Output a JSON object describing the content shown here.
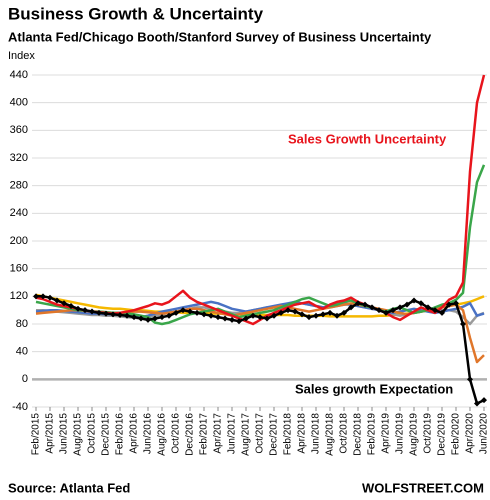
{
  "chart_data": {
    "type": "line",
    "title": "Business Growth & Uncertainty",
    "subtitle": "Atlanta Fed/Chicago Booth/Stanford Survey of Business Uncertainty",
    "y_label": "Index",
    "source": "Source: Atlanta Fed",
    "credit": "WOLFSTREET.COM",
    "annotations": [
      {
        "text": "Sales Growth Uncertainty",
        "color": "#e8141c"
      },
      {
        "text": "Sales growth Expectation",
        "color": "#000000"
      }
    ],
    "categories": [
      "Feb/2015",
      null,
      "Apr/2015",
      null,
      "Jun/2015",
      null,
      "Aug/2015",
      null,
      "Oct/2015",
      null,
      "Dec/2015",
      null,
      "Feb/2016",
      null,
      "Apr/2016",
      null,
      "Jun/2016",
      null,
      "Aug/2016",
      null,
      "Oct/2016",
      null,
      "Dec/2016",
      null,
      "Feb/2017",
      null,
      "Apr/2017",
      null,
      "Jun/2017",
      null,
      "Aug/2017",
      null,
      "Oct/2017",
      null,
      "Dec/2017",
      null,
      "Feb/2018",
      null,
      "Apr/2018",
      null,
      "Jun/2018",
      null,
      "Aug/2018",
      null,
      "Oct/2018",
      null,
      "Dec/2018",
      null,
      "Feb/2019",
      null,
      "Apr/2019",
      null,
      "Jun/2019",
      null,
      "Aug/2019",
      null,
      "Oct/2019",
      null,
      "Dec/2019",
      null,
      "Feb/2020",
      null,
      "Apr/2020",
      null,
      "Jun/2020"
    ],
    "ylim": [
      -40,
      440
    ],
    "yticks": [
      -40,
      0,
      40,
      80,
      120,
      160,
      200,
      240,
      280,
      320,
      360,
      400,
      440
    ],
    "grid": true,
    "series": [
      {
        "color": "#f5b800",
        "values": [
          122,
          120,
          118,
          116,
          114,
          112,
          110,
          108,
          106,
          104,
          103,
          102,
          102,
          101,
          100,
          100,
          99,
          98,
          98,
          97,
          97,
          96,
          96,
          96,
          96,
          95,
          95,
          95,
          94,
          94,
          94,
          94,
          93,
          93,
          93,
          93,
          93,
          92,
          92,
          92,
          92,
          92,
          91,
          91,
          91,
          91,
          91,
          91,
          91,
          92,
          92,
          93,
          94,
          95,
          96,
          98,
          100,
          102,
          104,
          106,
          108,
          110,
          112,
          116,
          120
        ]
      },
      {
        "color": "#9a9a9a",
        "values": [
          100,
          100,
          99,
          98,
          97,
          96,
          95,
          94,
          93,
          93,
          92,
          92,
          91,
          90,
          89,
          88,
          90,
          92,
          94,
          96,
          98,
          100,
          102,
          104,
          104,
          102,
          100,
          98,
          96,
          96,
          98,
          100,
          102,
          104,
          104,
          104,
          106,
          108,
          110,
          108,
          106,
          104,
          104,
          106,
          108,
          108,
          106,
          104,
          102,
          100,
          96,
          94,
          92,
          94,
          96,
          98,
          100,
          102,
          100,
          100,
          98,
          90,
          80,
          92,
          96
        ]
      },
      {
        "color": "#4a72c4",
        "values": [
          98,
          99,
          100,
          100,
          99,
          98,
          97,
          96,
          95,
          95,
          94,
          94,
          93,
          92,
          91,
          90,
          92,
          95,
          98,
          100,
          102,
          104,
          106,
          108,
          110,
          112,
          110,
          106,
          102,
          100,
          98,
          100,
          102,
          104,
          106,
          108,
          110,
          112,
          110,
          108,
          106,
          104,
          106,
          108,
          110,
          108,
          106,
          104,
          102,
          100,
          98,
          96,
          98,
          100,
          102,
          100,
          98,
          96,
          98,
          100,
          102,
          105,
          110,
          92,
          95
        ]
      },
      {
        "color": "#e0762a",
        "values": [
          95,
          96,
          97,
          98,
          99,
          100,
          100,
          99,
          98,
          98,
          97,
          96,
          96,
          97,
          98,
          98,
          97,
          96,
          95,
          96,
          98,
          100,
          102,
          102,
          100,
          98,
          96,
          94,
          92,
          94,
          96,
          98,
          100,
          102,
          104,
          106,
          104,
          102,
          100,
          98,
          100,
          102,
          104,
          106,
          108,
          110,
          108,
          106,
          104,
          102,
          100,
          98,
          96,
          94,
          96,
          98,
          100,
          102,
          104,
          106,
          108,
          100,
          60,
          25,
          35
        ]
      },
      {
        "color": "#3aa64a",
        "values": [
          112,
          110,
          108,
          106,
          104,
          102,
          100,
          100,
          98,
          98,
          97,
          96,
          96,
          95,
          94,
          92,
          90,
          82,
          80,
          82,
          86,
          90,
          94,
          96,
          98,
          100,
          102,
          98,
          94,
          90,
          92,
          94,
          96,
          98,
          100,
          104,
          108,
          112,
          116,
          118,
          114,
          110,
          106,
          108,
          112,
          114,
          110,
          106,
          104,
          100,
          98,
          102,
          104,
          100,
          96,
          98,
          100,
          104,
          108,
          110,
          115,
          125,
          220,
          285,
          310
        ]
      },
      {
        "color": "#e8141c",
        "values": [
          118,
          116,
          112,
          108,
          106,
          104,
          102,
          100,
          98,
          97,
          96,
          95,
          96,
          98,
          100,
          103,
          106,
          110,
          108,
          112,
          120,
          128,
          118,
          112,
          108,
          104,
          100,
          96,
          92,
          88,
          84,
          80,
          86,
          92,
          96,
          100,
          104,
          108,
          110,
          112,
          106,
          102,
          108,
          112,
          114,
          118,
          112,
          108,
          104,
          100,
          96,
          90,
          86,
          92,
          98,
          104,
          100,
          96,
          104,
          115,
          120,
          140,
          300,
          400,
          440
        ]
      },
      {
        "color": "#000000",
        "marker": "diamond",
        "values": [
          120,
          120,
          118,
          114,
          110,
          106,
          102,
          100,
          98,
          96,
          95,
          94,
          93,
          92,
          90,
          88,
          86,
          88,
          90,
          92,
          96,
          100,
          98,
          96,
          94,
          92,
          90,
          88,
          86,
          84,
          88,
          92,
          90,
          88,
          92,
          96,
          100,
          98,
          94,
          90,
          92,
          94,
          96,
          92,
          96,
          104,
          110,
          108,
          104,
          100,
          96,
          100,
          104,
          108,
          114,
          110,
          104,
          100,
          96,
          108,
          110,
          80,
          0,
          -35,
          -30
        ]
      }
    ]
  }
}
